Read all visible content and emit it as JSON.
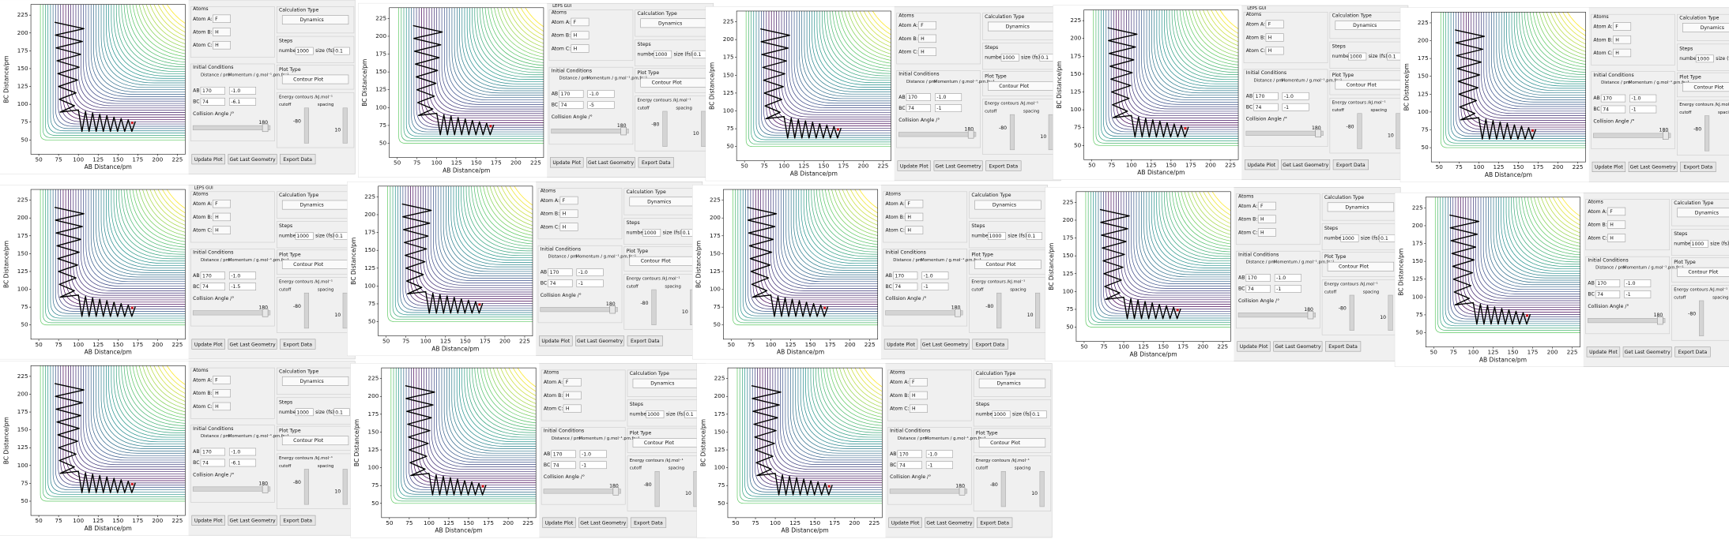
{
  "plot": {
    "x_label": "AB Distance/pm",
    "y_label": "BC Distance/pm",
    "xlim": [
      40,
      235
    ],
    "ylim": [
      30,
      240
    ],
    "xticks": [
      50,
      75,
      100,
      125,
      150,
      175,
      200,
      225
    ],
    "yticks": [
      50,
      75,
      100,
      125,
      150,
      175,
      200,
      225
    ]
  },
  "gui": {
    "atoms": "Atoms",
    "atom_a": "Atom A:",
    "atom_a_value": "F",
    "atom_b": "Atom B:",
    "atom_b_value": "H",
    "atom_c": "Atom C:",
    "atom_c_value": "H",
    "initial_conditions": "Initial Conditions",
    "distance": "Distance / pm",
    "momentum": "Momentum / g.mol⁻¹.pm.fs⁻¹",
    "ab": "AB",
    "bc": "BC",
    "ab_distance": "170",
    "bc_distance": "74",
    "ab_momentum": "-1.0",
    "collision_angle": "Collision Angle /°",
    "angle_value": "180",
    "calc_type": "Calculation Type",
    "calc_value": "Dynamics",
    "steps": "Steps",
    "number": "number",
    "number_value": "1000",
    "size": "size (fs)",
    "size_value": "0.1",
    "plot_type": "Plot Type",
    "plot_value": "Contour Plot",
    "energy": "Energy contours /kJ.mol⁻¹",
    "cutoff": "cutoff",
    "cutoff_value": "-80",
    "spacing": "spacing",
    "spacing_value": "10",
    "update": "Update Plot",
    "last_geom": "Get Last Geometry",
    "export": "Export Data"
  },
  "panels": [
    {
      "bc_momentum": "-6.1"
    },
    {
      "bc_momentum": "-5",
      "window_title": "LEPS GUI"
    },
    {
      "bc_momentum": "-1"
    },
    {
      "bc_momentum": "-1",
      "window_title": "LEPS GUI"
    },
    {
      "bc_momentum": "-1"
    },
    {
      "bc_momentum": "-1.5",
      "window_title": "LEPS GUI"
    },
    {
      "bc_momentum": "-1"
    },
    {
      "bc_momentum": "-1"
    },
    {
      "bc_momentum": "-1"
    },
    {
      "bc_momentum": "-1"
    },
    {
      "bc_momentum": "-6.1"
    },
    {
      "bc_momentum": "-1"
    },
    {
      "bc_momentum": "-1"
    }
  ]
}
